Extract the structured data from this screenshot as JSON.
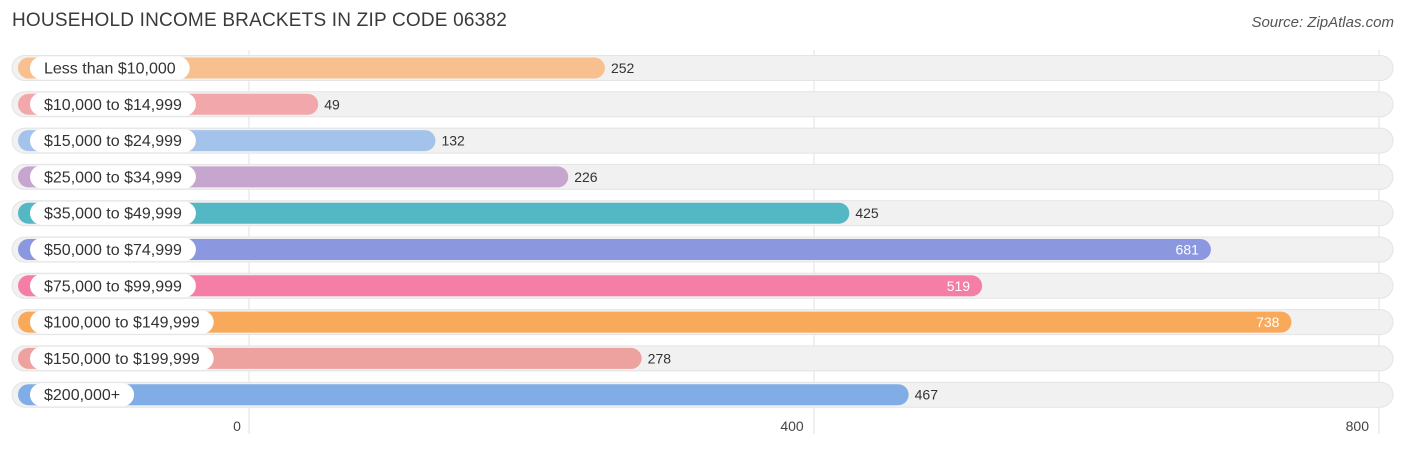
{
  "header": {
    "title": "HOUSEHOLD INCOME BRACKETS IN ZIP CODE 06382",
    "source": "Source: ZipAtlas.com"
  },
  "chart_data": {
    "type": "bar",
    "orientation": "horizontal",
    "title": "HOUSEHOLD INCOME BRACKETS IN ZIP CODE 06382",
    "categories": [
      "Less than $10,000",
      "$10,000 to $14,999",
      "$15,000 to $24,999",
      "$25,000 to $34,999",
      "$35,000 to $49,999",
      "$50,000 to $74,999",
      "$75,000 to $99,999",
      "$100,000 to $149,999",
      "$150,000 to $199,999",
      "$200,000+"
    ],
    "values": [
      252,
      49,
      132,
      226,
      425,
      681,
      519,
      738,
      278,
      467
    ],
    "value_labels": [
      "252",
      "49",
      "132",
      "226",
      "425",
      "681",
      "519",
      "738",
      "278",
      "467"
    ],
    "colors": [
      "#f9c08f",
      "#f2a8aa",
      "#a4c3ea",
      "#c6a6ce",
      "#53b8c4",
      "#8b98e0",
      "#f47ea6",
      "#f9a95a",
      "#eea29f",
      "#80ade6"
    ],
    "xlim": [
      0,
      800
    ],
    "xticks": [
      0,
      400,
      800
    ],
    "xtick_labels": [
      "0",
      "400",
      "800"
    ],
    "grid": true,
    "legend": "none"
  }
}
